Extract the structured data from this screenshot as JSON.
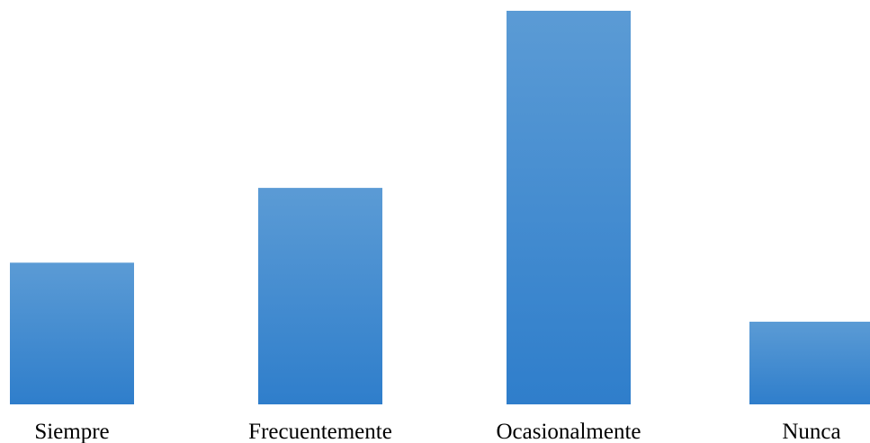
{
  "chart_data": {
    "type": "bar",
    "categories": [
      "Siempre",
      "Frecuentemente",
      "Ocasionalmente",
      "Nunca"
    ],
    "values": [
      36,
      55,
      100,
      21
    ],
    "ylim": [
      0,
      100
    ],
    "grid": false,
    "legend": "none",
    "colors": {
      "bar_top": "#5b9bd5",
      "bar_bottom": "#2f7ecb"
    }
  }
}
